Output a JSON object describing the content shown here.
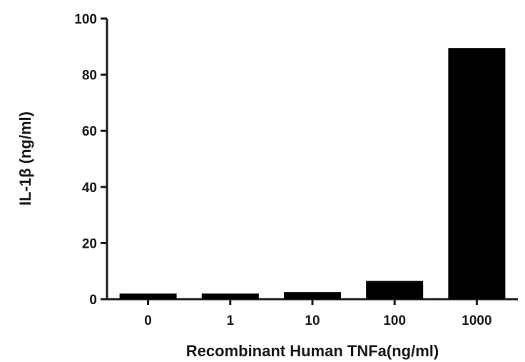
{
  "chart_data": {
    "type": "bar",
    "categories": [
      "0",
      "1",
      "10",
      "100",
      "1000"
    ],
    "values": [
      2,
      2,
      2.5,
      6.5,
      89.5
    ],
    "title": "",
    "xlabel": "Recombinant Human TNFa(ng/ml)",
    "ylabel": "IL-1β (ng/ml)",
    "ylim": [
      0,
      100
    ],
    "yticks": [
      "0",
      "20",
      "40",
      "60",
      "80",
      "100"
    ],
    "grid": false,
    "bar_color": "#000000"
  }
}
